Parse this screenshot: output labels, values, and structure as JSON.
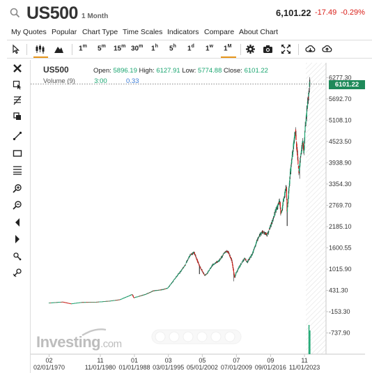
{
  "header": {
    "symbol": "US500",
    "period": "1 Month",
    "price": "6,101.22",
    "change": "-17.49",
    "change_pct": "-0.29%"
  },
  "menu": [
    "My Quotes",
    "Popular",
    "Chart Type",
    "Time Scales",
    "Indicators",
    "Compare",
    "About Chart"
  ],
  "toolbar": {
    "timescales": [
      {
        "n": "1",
        "u": "m"
      },
      {
        "n": "5",
        "u": "m"
      },
      {
        "n": "15",
        "u": "m"
      },
      {
        "n": "30",
        "u": "m"
      },
      {
        "n": "1",
        "u": "h"
      },
      {
        "n": "5",
        "u": "h"
      },
      {
        "n": "1",
        "u": "d"
      },
      {
        "n": "1",
        "u": "w"
      },
      {
        "n": "1",
        "u": "M"
      }
    ],
    "active_timescale": "1M"
  },
  "left_tools": [
    "close-icon",
    "crosshair-icon",
    "fibonacci-icon",
    "layers-icon",
    "trendline-icon",
    "rectangle-icon",
    "horizontal-lines-icon",
    "zoom-in-icon",
    "zoom-out-icon",
    "scroll-left-icon",
    "scroll-right-icon",
    "lock-icon",
    "magnet-icon"
  ],
  "legend": {
    "symbol": "US500",
    "open_label": "Open:",
    "open": "5896.19",
    "high_label": "High:",
    "high": "6127.91",
    "low_label": "Low:",
    "low": "5774.88",
    "close_label": "Close:",
    "close": "6101.22",
    "volume_label": "Volume (9)",
    "vol_a": "3:00",
    "vol_b": "0.33"
  },
  "watermark": {
    "main": "Investing",
    "suffix": ".com"
  },
  "current_price_label": "6101.22",
  "colors": {
    "up": "#1aa570",
    "down": "#d91e18",
    "accent": "#e8961b",
    "label_bg": "#1f8a5a"
  },
  "chart_data": {
    "type": "candlestick",
    "yaxis": {
      "ticks": [
        "6277.30",
        "5692.70",
        "5108.10",
        "4523.50",
        "3938.90",
        "3354.30",
        "2769.70",
        "2185.10",
        "1600.55",
        "1015.90",
        "431.30",
        "-153.30",
        "-737.90"
      ],
      "range": [
        -900,
        6380
      ]
    },
    "xaxis": {
      "top_labels": [
        {
          "text": "02",
          "t": 1970.0
        },
        {
          "text": "11",
          "t": 1980.8
        },
        {
          "text": "01",
          "t": 1988.0
        },
        {
          "text": "03",
          "t": 1995.15
        },
        {
          "text": "05",
          "t": 2002.3
        },
        {
          "text": "07",
          "t": 2009.5
        },
        {
          "text": "09",
          "t": 2016.7
        },
        {
          "text": "11",
          "t": 2023.85
        }
      ],
      "bottom_labels": [
        {
          "text": "02/01/1970",
          "t": 1970.0
        },
        {
          "text": "11/01/1980",
          "t": 1980.8
        },
        {
          "text": "01/01/1988",
          "t": 1988.0
        },
        {
          "text": "03/01/1995",
          "t": 1995.15
        },
        {
          "text": "05/01/2002",
          "t": 2002.3
        },
        {
          "text": "07/01/2009",
          "t": 2009.5
        },
        {
          "text": "09/01/2016",
          "t": 2016.7
        },
        {
          "text": "11/01/2023",
          "t": 2023.85
        }
      ],
      "range": [
        1966.7,
        2028.1
      ]
    },
    "series": [
      {
        "anchors": [
          [
            1970.0,
            90
          ],
          [
            1972.9,
            118
          ],
          [
            1974.7,
            68
          ],
          [
            1976.9,
            107
          ],
          [
            1980.0,
            114
          ],
          [
            1982.6,
            140
          ],
          [
            1985.0,
            180
          ],
          [
            1987.6,
            322
          ],
          [
            1987.9,
            230
          ],
          [
            1990.5,
            330
          ],
          [
            1992.0,
            420
          ],
          [
            1994.0,
            455
          ],
          [
            1995.1,
            500
          ],
          [
            1996.5,
            740
          ],
          [
            1997.8,
            960
          ],
          [
            1998.6,
            1100
          ],
          [
            1999.8,
            1400
          ],
          [
            2000.6,
            1480
          ],
          [
            2001.7,
            1120
          ],
          [
            2002.8,
            850
          ],
          [
            2003.3,
            880
          ],
          [
            2004.5,
            1130
          ],
          [
            2005.9,
            1250
          ],
          [
            2007.1,
            1480
          ],
          [
            2007.8,
            1500
          ],
          [
            2008.6,
            1240
          ],
          [
            2009.2,
            770
          ],
          [
            2009.5,
            920
          ],
          [
            2010.5,
            1150
          ],
          [
            2011.3,
            1320
          ],
          [
            2011.8,
            1200
          ],
          [
            2012.9,
            1430
          ],
          [
            2013.9,
            1800
          ],
          [
            2014.9,
            2050
          ],
          [
            2015.7,
            1990
          ],
          [
            2016.0,
            1950
          ],
          [
            2016.9,
            2250
          ],
          [
            2017.9,
            2650
          ],
          [
            2018.7,
            2900
          ],
          [
            2018.95,
            2500
          ],
          [
            2019.9,
            3200
          ],
          [
            2020.1,
            3250
          ],
          [
            2020.25,
            2600
          ],
          [
            2020.9,
            3650
          ],
          [
            2021.9,
            4750
          ],
          [
            2022.0,
            4800
          ],
          [
            2022.75,
            3650
          ],
          [
            2023.0,
            4000
          ],
          [
            2023.55,
            4560
          ],
          [
            2023.8,
            4200
          ],
          [
            2024.0,
            4800
          ],
          [
            2024.5,
            5500
          ],
          [
            2024.9,
            5900
          ],
          [
            2025.0,
            6101
          ]
        ],
        "low_points": [
          [
            2001.7,
            880
          ],
          [
            2008.9,
            680
          ],
          [
            2020.2,
            2200
          ],
          [
            2022.8,
            3500
          ]
        ]
      }
    ]
  }
}
